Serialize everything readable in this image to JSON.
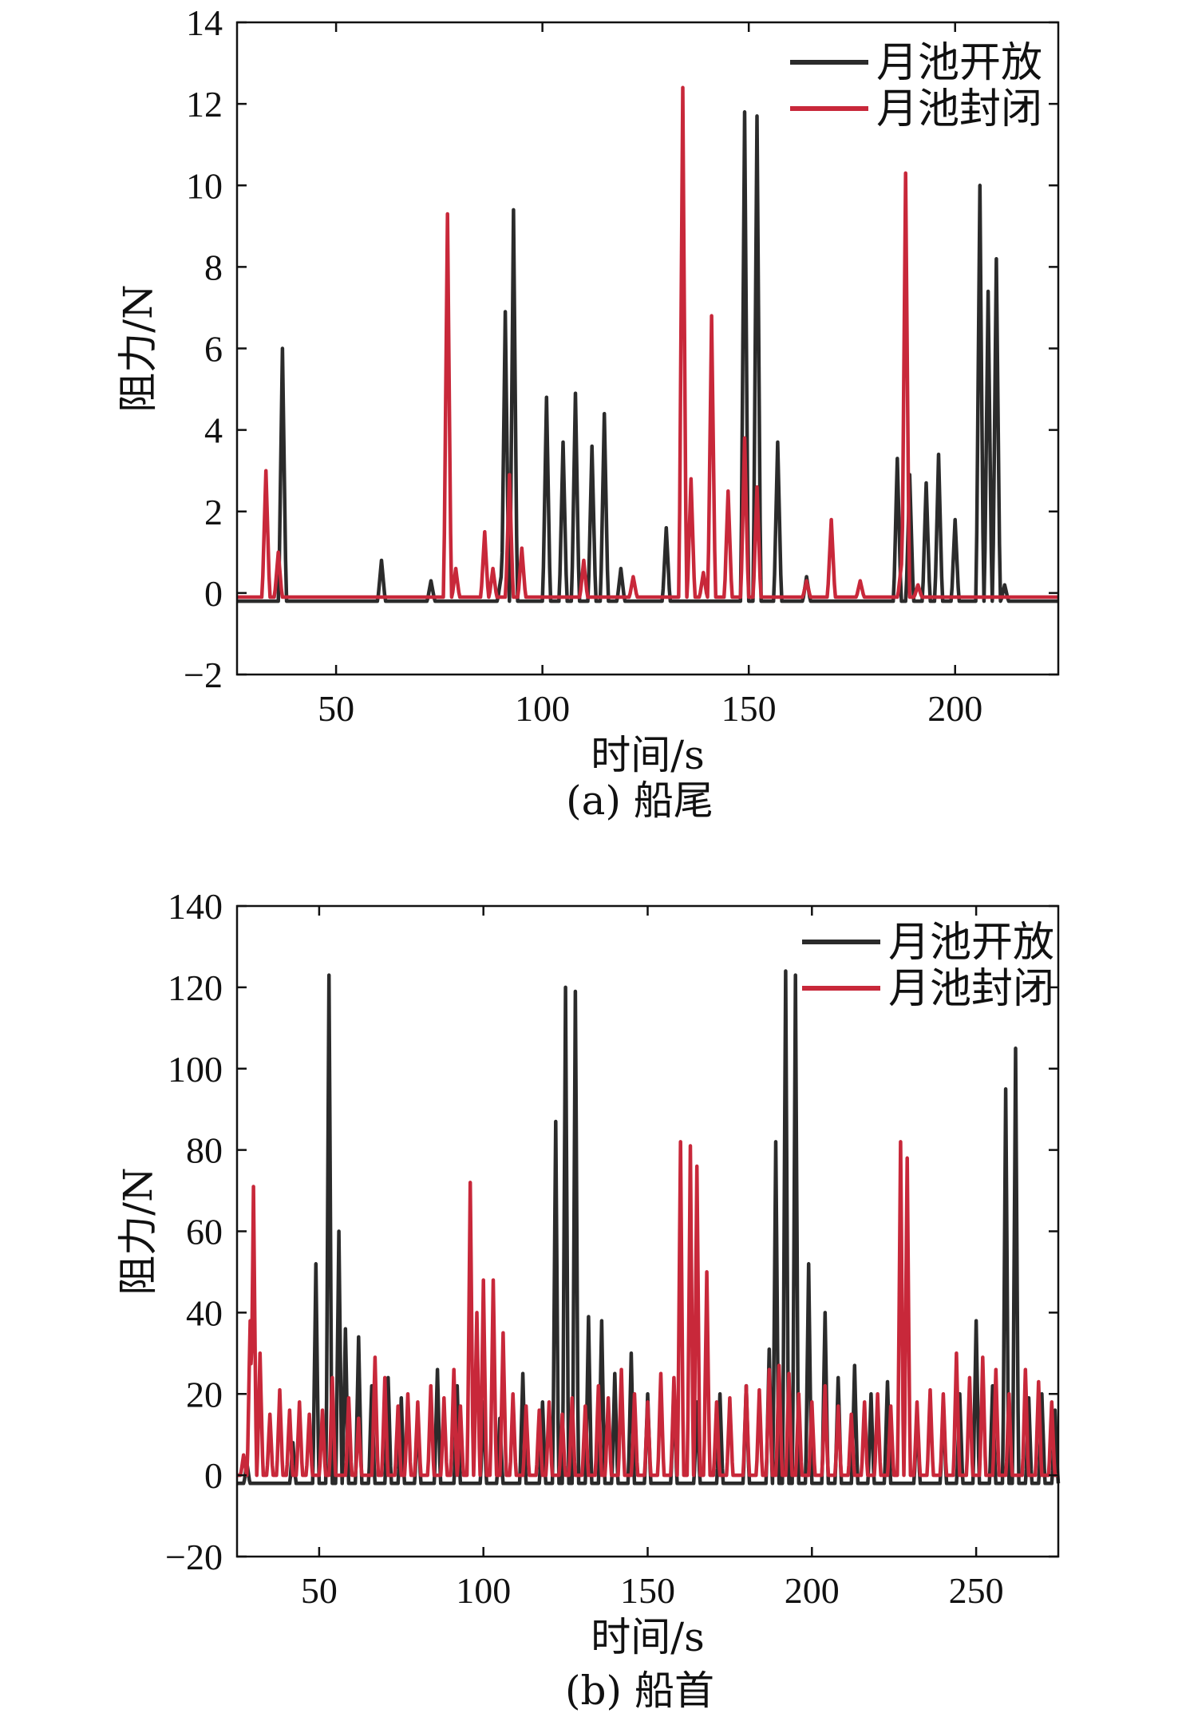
{
  "chart_data": [
    {
      "type": "line",
      "caption": "(a) 船尾",
      "xlabel": "时间/s",
      "ylabel": "阻力/N",
      "xlim": [
        26,
        225
      ],
      "ylim": [
        -2,
        14
      ],
      "xticks": [
        50,
        100,
        150,
        200
      ],
      "yticks": [
        -2,
        0,
        2,
        4,
        6,
        8,
        10,
        12,
        14
      ],
      "ytick_labels": [
        "−2",
        "0",
        "2",
        "4",
        "6",
        "8",
        "10",
        "12",
        "14"
      ],
      "legend_position": "top-right",
      "grid": false,
      "series": [
        {
          "name": "月池开放",
          "color": "#2b2b2b",
          "baseline": -0.2,
          "peaks": [
            [
              37,
              6.0
            ],
            [
              61,
              0.8
            ],
            [
              73,
              0.3
            ],
            [
              90,
              0.4
            ],
            [
              91,
              6.9
            ],
            [
              93,
              9.4
            ],
            [
              101,
              4.8
            ],
            [
              105,
              3.7
            ],
            [
              108,
              4.9
            ],
            [
              112,
              3.6
            ],
            [
              115,
              4.4
            ],
            [
              119,
              0.6
            ],
            [
              130,
              1.6
            ],
            [
              149,
              11.8
            ],
            [
              152,
              11.7
            ],
            [
              157,
              3.7
            ],
            [
              164,
              0.4
            ],
            [
              186,
              3.3
            ],
            [
              189,
              2.9
            ],
            [
              193,
              2.7
            ],
            [
              196,
              3.4
            ],
            [
              200,
              1.8
            ],
            [
              206,
              10.0
            ],
            [
              208,
              7.4
            ],
            [
              210,
              8.2
            ],
            [
              212,
              0.2
            ]
          ]
        },
        {
          "name": "月池封闭",
          "color": "#c8283a",
          "baseline": -0.1,
          "peaks": [
            [
              33,
              3.0
            ],
            [
              36,
              1.0
            ],
            [
              77,
              9.3
            ],
            [
              79,
              0.6
            ],
            [
              86,
              1.5
            ],
            [
              88,
              0.6
            ],
            [
              92,
              2.9
            ],
            [
              95,
              1.1
            ],
            [
              110,
              0.8
            ],
            [
              122,
              0.4
            ],
            [
              134,
              12.4
            ],
            [
              136,
              2.8
            ],
            [
              139,
              0.5
            ],
            [
              141,
              6.8
            ],
            [
              145,
              2.5
            ],
            [
              149,
              3.8
            ],
            [
              152,
              2.6
            ],
            [
              164,
              0.3
            ],
            [
              170,
              1.8
            ],
            [
              177,
              0.3
            ],
            [
              187,
              0.7
            ],
            [
              188,
              10.3
            ],
            [
              191,
              0.2
            ]
          ]
        }
      ]
    },
    {
      "type": "line",
      "caption": "(b) 船首",
      "xlabel": "时间/s",
      "ylabel": "阻力/N",
      "xlim": [
        25,
        275
      ],
      "ylim": [
        -20,
        140
      ],
      "xticks": [
        50,
        100,
        150,
        200,
        250
      ],
      "yticks": [
        -20,
        0,
        20,
        40,
        60,
        80,
        100,
        120,
        140
      ],
      "ytick_labels": [
        "−20",
        "0",
        "20",
        "40",
        "60",
        "80",
        "100",
        "120",
        "140"
      ],
      "legend_position": "top-right",
      "grid": false,
      "series": [
        {
          "name": "月池开放",
          "color": "#2b2b2b",
          "baseline": -2,
          "peaks": [
            [
              28,
              3
            ],
            [
              42,
              8
            ],
            [
              49,
              52
            ],
            [
              53,
              123
            ],
            [
              56,
              60
            ],
            [
              58,
              36
            ],
            [
              62,
              34
            ],
            [
              66,
              22
            ],
            [
              71,
              24
            ],
            [
              75,
              19
            ],
            [
              80,
              15
            ],
            [
              86,
              26
            ],
            [
              92,
              22
            ],
            [
              100,
              18
            ],
            [
              105,
              14
            ],
            [
              112,
              25
            ],
            [
              118,
              18
            ],
            [
              122,
              87
            ],
            [
              125,
              120
            ],
            [
              128,
              119
            ],
            [
              132,
              39
            ],
            [
              136,
              38
            ],
            [
              140,
              25
            ],
            [
              145,
              30
            ],
            [
              150,
              20
            ],
            [
              158,
              22
            ],
            [
              165,
              18
            ],
            [
              172,
              20
            ],
            [
              180,
              22
            ],
            [
              187,
              31
            ],
            [
              189,
              82
            ],
            [
              192,
              124
            ],
            [
              195,
              123
            ],
            [
              199,
              52
            ],
            [
              204,
              40
            ],
            [
              208,
              24
            ],
            [
              213,
              27
            ],
            [
              218,
              20
            ],
            [
              223,
              23
            ],
            [
              232,
              15
            ],
            [
              240,
              18
            ],
            [
              245,
              20
            ],
            [
              250,
              38
            ],
            [
              255,
              22
            ],
            [
              259,
              95
            ],
            [
              262,
              105
            ],
            [
              266,
              19
            ],
            [
              270,
              20
            ],
            [
              274,
              16
            ]
          ]
        },
        {
          "name": "月池封闭",
          "color": "#c8283a",
          "baseline": 0,
          "peaks": [
            [
              27,
              5
            ],
            [
              29,
              38
            ],
            [
              30,
              71
            ],
            [
              32,
              30
            ],
            [
              35,
              15
            ],
            [
              38,
              21
            ],
            [
              41,
              16
            ],
            [
              44,
              18
            ],
            [
              47,
              15
            ],
            [
              51,
              16
            ],
            [
              54,
              24
            ],
            [
              59,
              19
            ],
            [
              62,
              14
            ],
            [
              67,
              29
            ],
            [
              70,
              24
            ],
            [
              74,
              17
            ],
            [
              77,
              20
            ],
            [
              80,
              18
            ],
            [
              84,
              22
            ],
            [
              88,
              19
            ],
            [
              91,
              26
            ],
            [
              93,
              17
            ],
            [
              96,
              72
            ],
            [
              98,
              40
            ],
            [
              100,
              48
            ],
            [
              103,
              48
            ],
            [
              106,
              35
            ],
            [
              109,
              20
            ],
            [
              113,
              17
            ],
            [
              117,
              16
            ],
            [
              120,
              18
            ],
            [
              124,
              15
            ],
            [
              127,
              19
            ],
            [
              131,
              17
            ],
            [
              135,
              22
            ],
            [
              138,
              19
            ],
            [
              142,
              26
            ],
            [
              146,
              20
            ],
            [
              150,
              18
            ],
            [
              154,
              25
            ],
            [
              158,
              24
            ],
            [
              160,
              82
            ],
            [
              163,
              81
            ],
            [
              165,
              76
            ],
            [
              168,
              50
            ],
            [
              171,
              18
            ],
            [
              175,
              19
            ],
            [
              180,
              22
            ],
            [
              184,
              21
            ],
            [
              187,
              26
            ],
            [
              190,
              27
            ],
            [
              193,
              25
            ],
            [
              196,
              20
            ],
            [
              200,
              18
            ],
            [
              204,
              22
            ],
            [
              208,
              17
            ],
            [
              212,
              15
            ],
            [
              216,
              18
            ],
            [
              220,
              20
            ],
            [
              224,
              17
            ],
            [
              227,
              82
            ],
            [
              229,
              78
            ],
            [
              232,
              18
            ],
            [
              236,
              21
            ],
            [
              240,
              20
            ],
            [
              244,
              30
            ],
            [
              248,
              24
            ],
            [
              252,
              29
            ],
            [
              256,
              26
            ],
            [
              260,
              20
            ],
            [
              265,
              26
            ],
            [
              269,
              23
            ],
            [
              273,
              18
            ]
          ]
        }
      ]
    }
  ]
}
